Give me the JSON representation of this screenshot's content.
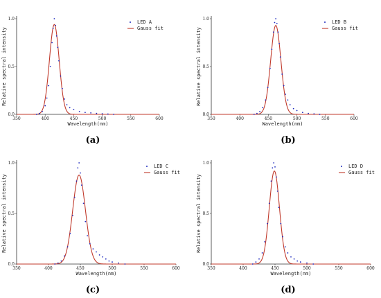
{
  "chart_data": [
    {
      "type": "scatter",
      "caption": "(a)",
      "xlabel": "Wavelength(nm)",
      "ylabel": "Relative spectral intensity",
      "xlim": [
        350,
        600
      ],
      "ylim": [
        0,
        1.0
      ],
      "xticks": [
        "350",
        "400",
        "450",
        "500",
        "550",
        "600"
      ],
      "yticks": [
        "0.0",
        "0.5",
        "1.0"
      ],
      "legend_position": "top-right",
      "series": [
        {
          "name": "LED A",
          "kind": "points",
          "color": "#1f2bbf",
          "x": [
            385,
            390,
            395,
            400,
            403,
            406,
            409,
            412,
            414,
            416,
            418,
            420,
            422,
            424,
            427,
            430,
            434,
            438,
            443,
            450,
            460,
            470,
            480,
            490,
            500,
            510,
            520
          ],
          "y": [
            0.0,
            0.01,
            0.03,
            0.09,
            0.17,
            0.3,
            0.5,
            0.75,
            0.9,
            1.0,
            0.93,
            0.82,
            0.7,
            0.56,
            0.4,
            0.27,
            0.16,
            0.1,
            0.07,
            0.05,
            0.03,
            0.02,
            0.015,
            0.01,
            0.006,
            0.003,
            0.0
          ]
        },
        {
          "name": "Gauss fit",
          "kind": "gauss",
          "color": "#c0392b",
          "amplitude": 0.94,
          "center": 416,
          "sigma": 8.5
        }
      ]
    },
    {
      "type": "scatter",
      "caption": "(b)",
      "xlabel": "Wavelength(nm)",
      "ylabel": "Relative spectral intensity",
      "xlim": [
        350,
        600
      ],
      "ylim": [
        0,
        1.0
      ],
      "xticks": [
        "350",
        "400",
        "450",
        "500",
        "550",
        "600"
      ],
      "yticks": [
        "0.0",
        "0.5",
        "1.0"
      ],
      "legend_position": "top-right",
      "series": [
        {
          "name": "LED B",
          "kind": "points",
          "color": "#1f2bbf",
          "x": [
            425,
            430,
            435,
            440,
            445,
            449,
            453,
            456,
            459,
            461,
            463,
            465,
            467,
            469,
            471,
            474,
            477,
            480,
            484,
            488,
            494,
            500,
            510,
            520,
            530,
            540
          ],
          "y": [
            0.0,
            0.01,
            0.03,
            0.07,
            0.15,
            0.28,
            0.48,
            0.68,
            0.86,
            0.96,
            1.0,
            0.95,
            0.86,
            0.74,
            0.6,
            0.42,
            0.3,
            0.21,
            0.15,
            0.1,
            0.06,
            0.04,
            0.02,
            0.01,
            0.005,
            0.0
          ]
        },
        {
          "name": "Gauss fit",
          "kind": "gauss",
          "color": "#c0392b",
          "amplitude": 0.93,
          "center": 463,
          "sigma": 9
        }
      ]
    },
    {
      "type": "scatter",
      "caption": "(c)",
      "xlabel": "Wavelength(nm)",
      "ylabel": "Relative spectral intensity",
      "xlim": [
        350,
        600
      ],
      "ylim": [
        0,
        1.0
      ],
      "xticks": [
        "350",
        "400",
        "450",
        "500",
        "550",
        "600"
      ],
      "yticks": [
        "0.0",
        "0.5",
        "1.0"
      ],
      "legend_position": "top-right",
      "series": [
        {
          "name": "LED C",
          "kind": "points",
          "color": "#1f2bbf",
          "x": [
            410,
            415,
            420,
            425,
            430,
            434,
            438,
            441,
            444,
            446,
            448,
            450,
            452,
            455,
            458,
            461,
            465,
            470,
            475,
            480,
            485,
            490,
            495,
            500,
            510,
            520
          ],
          "y": [
            0.0,
            0.01,
            0.03,
            0.08,
            0.17,
            0.3,
            0.48,
            0.66,
            0.82,
            0.95,
            1.0,
            0.9,
            0.78,
            0.6,
            0.42,
            0.28,
            0.2,
            0.15,
            0.12,
            0.09,
            0.07,
            0.05,
            0.03,
            0.02,
            0.01,
            0.0
          ]
        },
        {
          "name": "Gauss fit",
          "kind": "gauss",
          "color": "#c0392b",
          "amplitude": 0.88,
          "center": 448,
          "sigma": 10
        }
      ]
    },
    {
      "type": "scatter",
      "caption": "(d)",
      "xlabel": "Wavelength(nm)",
      "ylabel": "Relative spectral intensity",
      "xlim": [
        350,
        600
      ],
      "ylim": [
        0,
        1.0
      ],
      "xticks": [
        "350",
        "400",
        "450",
        "500",
        "550",
        "600"
      ],
      "yticks": [
        "0.0",
        "0.5",
        "1.0"
      ],
      "legend_position": "top-right",
      "series": [
        {
          "name": "LED D",
          "kind": "points",
          "color": "#1f2bbf",
          "x": [
            415,
            420,
            425,
            430,
            434,
            438,
            441,
            444,
            446,
            448,
            450,
            452,
            454,
            456,
            459,
            462,
            466,
            470,
            475,
            480,
            485,
            490,
            500,
            510
          ],
          "y": [
            0.0,
            0.02,
            0.05,
            0.11,
            0.22,
            0.4,
            0.6,
            0.82,
            0.95,
            1.0,
            0.96,
            0.86,
            0.72,
            0.56,
            0.4,
            0.27,
            0.17,
            0.11,
            0.07,
            0.05,
            0.03,
            0.02,
            0.01,
            0.0
          ]
        },
        {
          "name": "Gauss fit",
          "kind": "gauss",
          "color": "#c0392b",
          "amplitude": 0.92,
          "center": 449,
          "sigma": 8
        }
      ]
    }
  ]
}
